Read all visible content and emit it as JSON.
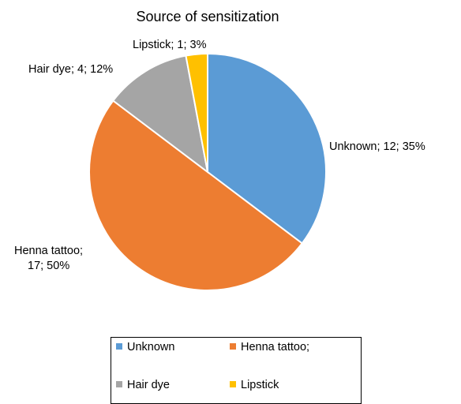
{
  "chart_data": {
    "type": "pie",
    "title": "Source of sensitization",
    "slices": [
      {
        "name": "Unknown",
        "value": 12,
        "percent": "35%",
        "color": "#5B9BD5",
        "label_lines": [
          "Unknown; 12; 35%"
        ]
      },
      {
        "name": "Henna tattoo;",
        "value": 17,
        "percent": "50%",
        "color": "#ED7D31",
        "label_lines": [
          "Henna tattoo;",
          "17; 50%"
        ]
      },
      {
        "name": "Hair dye",
        "value": 4,
        "percent": "12%",
        "color": "#A5A5A5",
        "label_lines": [
          "Hair dye; 4; 12%"
        ]
      },
      {
        "name": "Lipstick",
        "value": 1,
        "percent": "3%",
        "color": "#FFC000",
        "label_lines": [
          "Lipstick; 1; 3%"
        ]
      }
    ],
    "legend": {
      "placement": "bottom",
      "entries": [
        "Unknown",
        "Henna tattoo;",
        "Hair dye",
        "Lipstick"
      ]
    }
  }
}
